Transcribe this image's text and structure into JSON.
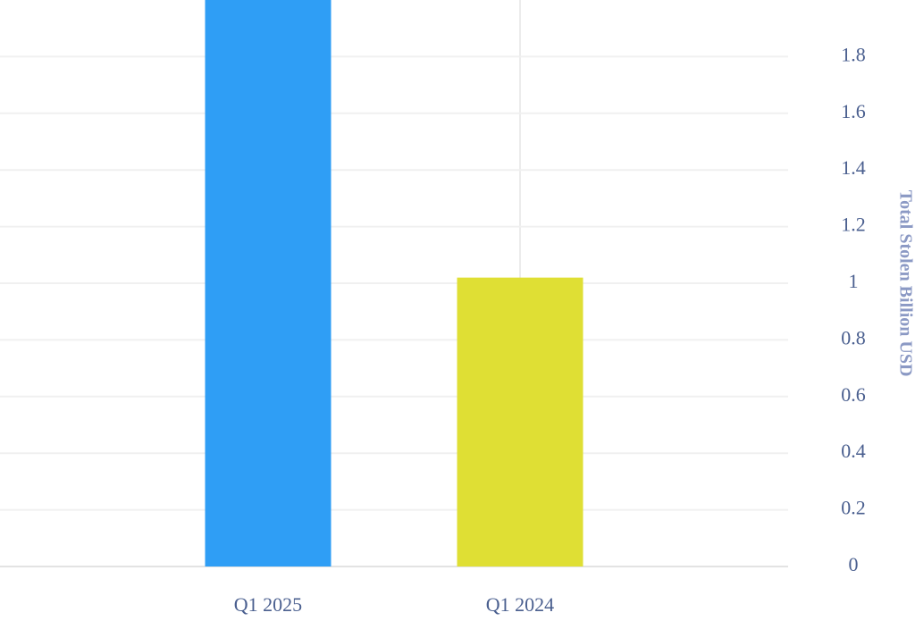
{
  "chart_data": {
    "type": "bar",
    "y_axis_label": "Total Stolen Billion USD",
    "categories": [
      "Q1 2025",
      "Q1 2024"
    ],
    "values": [
      2.0,
      1.02
    ],
    "colors": [
      "#2f9ef5",
      "#dfdf34"
    ],
    "ylim": [
      0,
      2.0
    ],
    "yticks": [
      0,
      0.2,
      0.4,
      0.6,
      0.8,
      1,
      1.2,
      1.4,
      1.6,
      1.8
    ],
    "grid": true,
    "y_axis_side": "right"
  }
}
